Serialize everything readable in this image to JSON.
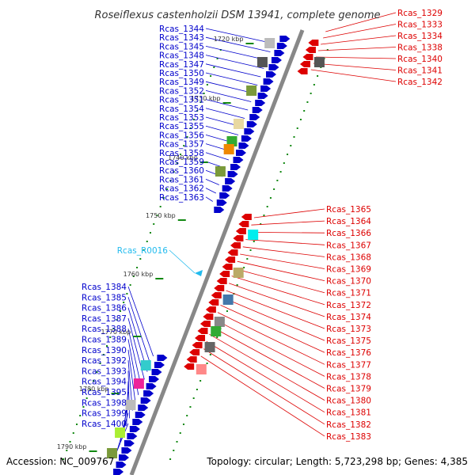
{
  "title": "Roseiflexus castenholzii DSM 13941, complete genome",
  "footer": {
    "accession": "Accession: NC_009767",
    "topology": "Topology: circular; Length: 5,723,298 bp; Genes: 4,385"
  },
  "colors": {
    "forward": "#0000cc",
    "reverse": "#dd0000",
    "rna": "#22bbee",
    "axis": "#888888",
    "tick": "#118811"
  },
  "ticks": [
    "1720 kbp",
    "1730 kbp",
    "1740 kbp",
    "1750 kbp",
    "1760 kbp",
    "1770 kbp",
    "1780 kbp",
    "1790 kbp"
  ],
  "labels": {
    "left": [
      "Rcas_1344",
      "Rcas_1343",
      "Rcas_1345",
      "Rcas_1348",
      "Rcas_1347",
      "Rcas_1350",
      "Rcas_1349",
      "Rcas_1352",
      "Rcas_1351",
      "Rcas_1354",
      "Rcas_1353",
      "Rcas_1355",
      "Rcas_1356",
      "Rcas_1357",
      "Rcas_1358",
      "Rcas_1359",
      "Rcas_1360",
      "Rcas_1361",
      "Rcas_1362",
      "Rcas_1363",
      "Rcas_1384",
      "Rcas_1385",
      "Rcas_1386",
      "Rcas_1387",
      "Rcas_1388",
      "Rcas_1389",
      "Rcas_1390",
      "Rcas_1392",
      "Rcas_1393",
      "Rcas_1394",
      "Rcas_1395",
      "Rcas_1398",
      "Rcas_1399",
      "Rcas_1400"
    ],
    "rna": [
      "Rcas_R0016"
    ],
    "right": [
      "Rcas_1329",
      "Rcas_1333",
      "Rcas_1334",
      "Rcas_1338",
      "Rcas_1340",
      "Rcas_1341",
      "Rcas_1342",
      "Rcas_1365",
      "Rcas_1364",
      "Rcas_1366",
      "Rcas_1367",
      "Rcas_1368",
      "Rcas_1369",
      "Rcas_1370",
      "Rcas_1371",
      "Rcas_1372",
      "Rcas_1374",
      "Rcas_1373",
      "Rcas_1375",
      "Rcas_1376",
      "Rcas_1377",
      "Rcas_1378",
      "Rcas_1379",
      "Rcas_1380",
      "Rcas_1381",
      "Rcas_1382",
      "Rcas_1383"
    ]
  }
}
